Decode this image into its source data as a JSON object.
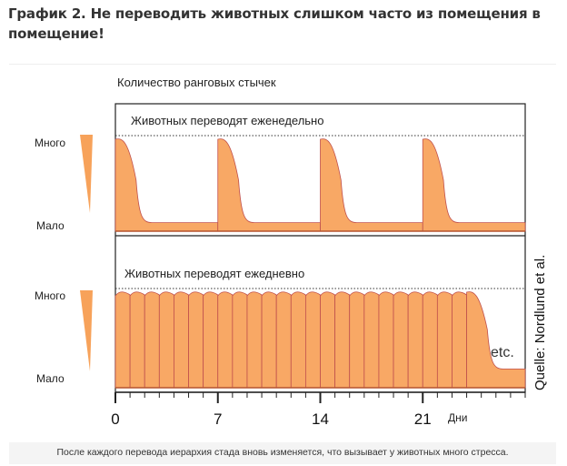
{
  "header": {
    "title": "График 2. Не переводить животных слишком часто из помещения в помещение!"
  },
  "caption": "После каждого перевода иерархия стада вновь изменяется, что вызывает у животных много стресса.",
  "colors": {
    "fill": "#f8a865",
    "stroke": "#c0504d",
    "wedge": "#f7a25a"
  },
  "chart_data": {
    "type": "area",
    "title": "Количество ранговых стычек",
    "xlabel": "Дни",
    "xticks": [
      0,
      7,
      14,
      21
    ],
    "xlim": [
      0,
      28
    ],
    "y_levels": {
      "high": "Много",
      "low": "Мало"
    },
    "source": "Quelle: Nordlund et al.",
    "annotation": "etc.",
    "panels": [
      {
        "name": "weekly",
        "label": "Животных переводят еженедельно",
        "transfer_days": [
          0,
          7,
          14,
          21
        ],
        "peak": 1.0,
        "baseline": 0.1,
        "decay_days": 2.5
      },
      {
        "name": "daily",
        "label": "Животных переводят ежедневно",
        "transfer_days": [
          0,
          1,
          2,
          3,
          4,
          5,
          6,
          7,
          8,
          9,
          10,
          11,
          12,
          13,
          14,
          15,
          16,
          17,
          18,
          19,
          20,
          21,
          22,
          23,
          24
        ],
        "peak": 1.0,
        "baseline": 0.2,
        "decay_days": 2.5
      }
    ]
  }
}
